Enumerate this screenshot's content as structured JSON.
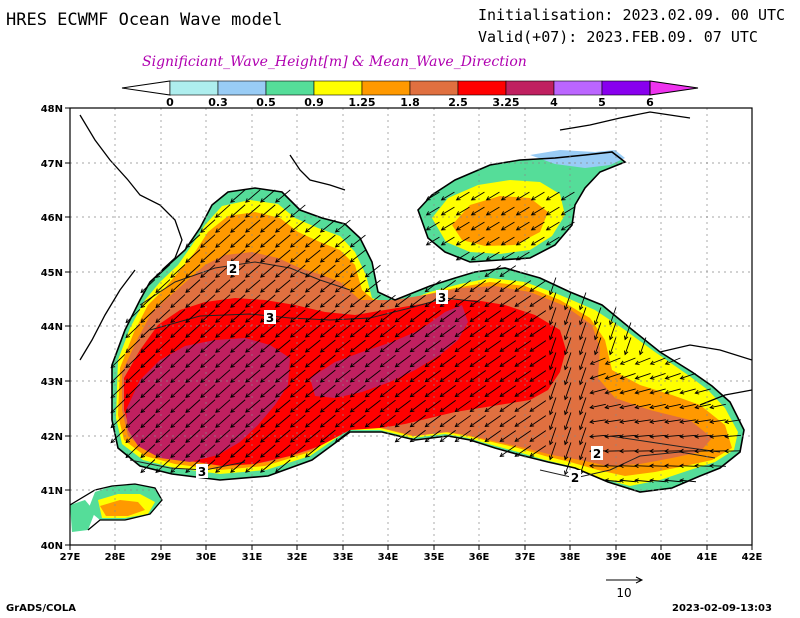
{
  "header": {
    "title": "HRES ECWMF Ocean Wave model",
    "init": "Initialisation: 2023.02.09. 00 UTC",
    "valid": "Valid(+07): 2023.FEB.09. 07 UTC",
    "subtitle": "Significiant_Wave_Height[m] & Mean_Wave_Direction"
  },
  "colorbar": {
    "labels": [
      "0",
      "0.3",
      "0.5",
      "0.9",
      "1.25",
      "1.8",
      "2.5",
      "3.25",
      "4",
      "5",
      "6"
    ],
    "colors": [
      "#ffffff",
      "#aeeeee",
      "#99ccf5",
      "#55dd99",
      "#ffff00",
      "#ff9900",
      "#e07040",
      "#ff0000",
      "#c02060",
      "#bb66ff",
      "#8800ee",
      "#ee33ee"
    ]
  },
  "axes": {
    "lon_labels": [
      "27E",
      "28E",
      "29E",
      "30E",
      "31E",
      "32E",
      "33E",
      "34E",
      "35E",
      "36E",
      "37E",
      "38E",
      "39E",
      "40E",
      "41E",
      "42E"
    ],
    "lat_labels": [
      "40N",
      "41N",
      "42N",
      "43N",
      "44N",
      "45N",
      "46N",
      "47N",
      "48N"
    ]
  },
  "contour_labels": [
    "2",
    "3",
    "3",
    "3",
    "2",
    "2"
  ],
  "vector_ref": {
    "label": "10"
  },
  "footer": {
    "left": "GrADS/COLA",
    "right": "2023-02-09-13:03"
  },
  "colors": {
    "land": "#ffffff",
    "coast": "#000000",
    "subtitle": "#b000b0"
  }
}
